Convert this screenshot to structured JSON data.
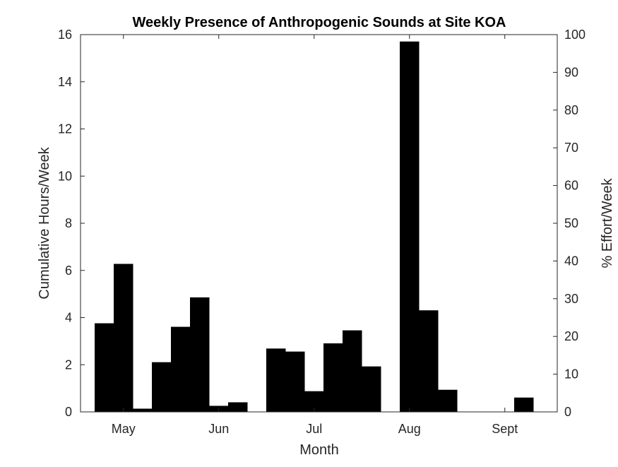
{
  "chart_data": {
    "type": "bar",
    "title": "Weekly Presence of Anthropogenic Sounds at Site KOA",
    "xlabel": "Month",
    "ylabel": "Cumulative Hours/Week",
    "y2label": "% Effort/Week",
    "ylim": [
      0,
      16
    ],
    "y2lim": [
      0,
      100
    ],
    "yticks": [
      0,
      2,
      4,
      6,
      8,
      10,
      12,
      14,
      16
    ],
    "y2ticks": [
      0,
      10,
      20,
      30,
      40,
      50,
      60,
      70,
      80,
      90,
      100
    ],
    "x_range_weeks": [
      0,
      25
    ],
    "month_ticks": [
      {
        "label": "May",
        "week": 2.25
      },
      {
        "label": "Jun",
        "week": 7.25
      },
      {
        "label": "Jul",
        "week": 12.25
      },
      {
        "label": "Aug",
        "week": 17.25
      },
      {
        "label": "Sept",
        "week": 22.25
      }
    ],
    "series": [
      {
        "values": [
          3.75,
          6.27,
          0.13,
          2.1,
          3.6,
          4.85,
          0.25,
          0.4,
          0,
          2.68,
          2.55,
          0.87,
          2.9,
          3.45,
          1.92,
          0,
          15.7,
          4.3,
          0.93,
          0,
          0,
          0,
          0.6
        ],
        "week_start": 0.75,
        "week_width": 1,
        "color": "#000000"
      }
    ],
    "grid": false,
    "legend": "none"
  }
}
